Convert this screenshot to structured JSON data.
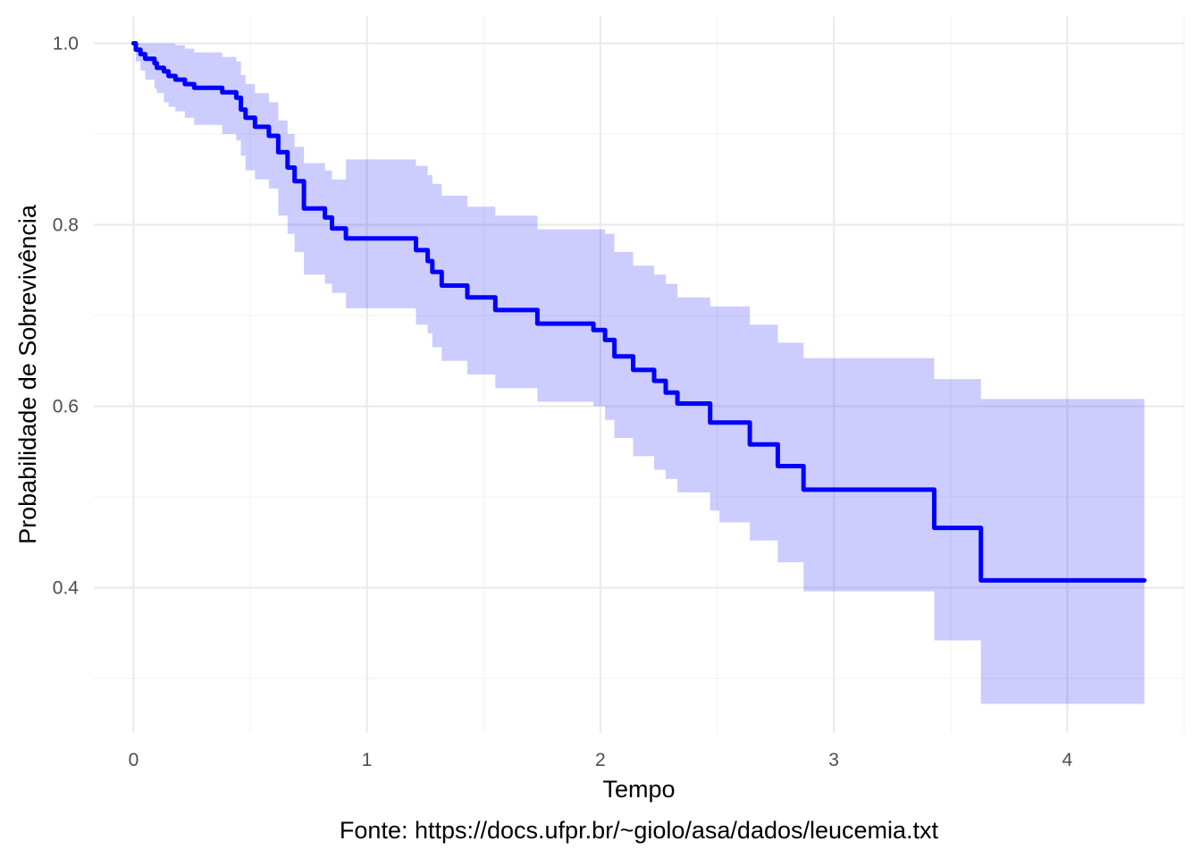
{
  "chart_data": {
    "type": "line",
    "xlabel": "Tempo",
    "ylabel": "Probabilidade de Sobrevivência",
    "caption": "Fonte: https://docs.ufpr.br/~giolo/asa/dados/leucemia.txt",
    "xlim": [
      -0.17,
      4.5
    ],
    "ylim": [
      0.24,
      1.03
    ],
    "x_ticks": [
      "0",
      "1",
      "2",
      "3",
      "4"
    ],
    "y_ticks": [
      "0.4",
      "0.6",
      "0.8",
      "1.0"
    ],
    "x_tick_values": [
      0,
      1,
      2,
      3,
      4
    ],
    "y_tick_values": [
      0.4,
      0.6,
      0.8,
      1.0
    ],
    "grid": true,
    "colors": {
      "line": "#0000ff",
      "band": "#0000ff",
      "band_opacity": 0.2
    },
    "series": [
      {
        "step": true,
        "x": [
          0,
          0.01,
          0.03,
          0.05,
          0.09,
          0.1,
          0.13,
          0.15,
          0.18,
          0.22,
          0.26,
          0.38,
          0.44,
          0.46,
          0.48,
          0.52,
          0.58,
          0.62,
          0.66,
          0.69,
          0.73,
          0.82,
          0.85,
          0.91,
          1.21,
          1.26,
          1.28,
          1.32,
          1.43,
          1.55,
          1.73,
          1.97,
          2.02,
          2.06,
          2.14,
          2.23,
          2.28,
          2.33,
          2.47,
          2.51,
          2.64,
          2.76,
          2.87,
          3.43,
          3.47,
          3.63,
          4.33
        ],
        "y": [
          1.0,
          0.993,
          0.988,
          0.983,
          0.978,
          0.973,
          0.969,
          0.964,
          0.96,
          0.955,
          0.951,
          0.946,
          0.94,
          0.927,
          0.918,
          0.908,
          0.898,
          0.88,
          0.863,
          0.848,
          0.818,
          0.808,
          0.796,
          0.785,
          0.772,
          0.76,
          0.748,
          0.733,
          0.72,
          0.706,
          0.691,
          0.684,
          0.673,
          0.655,
          0.64,
          0.628,
          0.615,
          0.603,
          0.582,
          0.582,
          0.558,
          0.534,
          0.508,
          0.466,
          0.466,
          0.408,
          0.408
        ],
        "lower": [
          1.0,
          0.98,
          0.97,
          0.96,
          0.95,
          0.945,
          0.935,
          0.93,
          0.925,
          0.918,
          0.91,
          0.9,
          0.893,
          0.876,
          0.86,
          0.85,
          0.84,
          0.81,
          0.79,
          0.77,
          0.745,
          0.735,
          0.725,
          0.708,
          0.69,
          0.68,
          0.665,
          0.65,
          0.635,
          0.62,
          0.605,
          0.6,
          0.585,
          0.565,
          0.545,
          0.53,
          0.52,
          0.505,
          0.485,
          0.472,
          0.452,
          0.428,
          0.396,
          0.342,
          0.342,
          0.272,
          0.272
        ],
        "upper": [
          1.0,
          1.0,
          1.0,
          1.0,
          1.0,
          1.0,
          1.0,
          1.0,
          0.998,
          0.994,
          0.99,
          0.985,
          0.98,
          0.965,
          0.955,
          0.945,
          0.935,
          0.915,
          0.9,
          0.886,
          0.868,
          0.86,
          0.85,
          0.872,
          0.865,
          0.855,
          0.845,
          0.832,
          0.82,
          0.81,
          0.795,
          0.795,
          0.79,
          0.77,
          0.755,
          0.745,
          0.735,
          0.72,
          0.71,
          0.71,
          0.69,
          0.67,
          0.653,
          0.63,
          0.63,
          0.608,
          0.608
        ]
      }
    ]
  }
}
